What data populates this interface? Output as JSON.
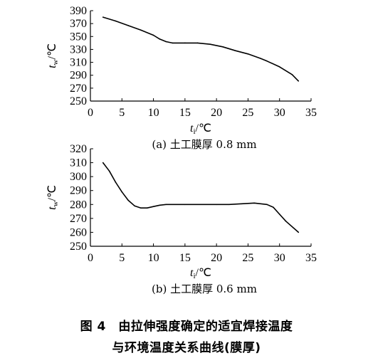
{
  "chart_data": [
    {
      "type": "line",
      "subcaption": "(a) 土工膜厚 0.8 mm",
      "xlabel_var": "t",
      "xlabel_sub": "i",
      "xlabel_unit": "/℃",
      "ylabel_var": "t",
      "ylabel_sub": "w",
      "ylabel_unit": "/℃",
      "xlim": [
        0,
        35
      ],
      "ylim": [
        250,
        390
      ],
      "xticks": [
        0,
        5,
        10,
        15,
        20,
        25,
        30,
        35
      ],
      "yticks": [
        250,
        270,
        290,
        310,
        330,
        350,
        370,
        390
      ],
      "x": [
        2,
        4,
        6,
        8,
        10,
        11,
        12,
        13,
        15,
        17,
        19,
        21,
        23,
        25,
        27,
        28,
        30,
        32,
        33
      ],
      "y": [
        380,
        374,
        367,
        360,
        352,
        346,
        342,
        340,
        340,
        340,
        338,
        334,
        328,
        323,
        316,
        312,
        303,
        291,
        281
      ]
    },
    {
      "type": "line",
      "subcaption": "(b) 土工膜厚 0.6 mm",
      "xlabel_var": "t",
      "xlabel_sub": "i",
      "xlabel_unit": "/℃",
      "ylabel_var": "t",
      "ylabel_sub": "w",
      "ylabel_unit": "/℃",
      "xlim": [
        0,
        35
      ],
      "ylim": [
        250,
        320
      ],
      "xticks": [
        0,
        5,
        10,
        15,
        20,
        25,
        30,
        35
      ],
      "yticks": [
        250,
        260,
        270,
        280,
        290,
        300,
        310,
        320
      ],
      "x": [
        2,
        3,
        4,
        5,
        6,
        7,
        8,
        9,
        10,
        11,
        12,
        15,
        20,
        22,
        24,
        26,
        28,
        29,
        30,
        31,
        33
      ],
      "y": [
        310,
        304,
        296,
        289,
        283,
        279,
        277.5,
        277.5,
        278.5,
        279.5,
        280,
        280,
        280,
        280,
        280.5,
        281,
        280,
        278,
        273,
        268,
        260
      ]
    }
  ],
  "caption": {
    "line1": "图 4　由拉伸强度确定的适宜焊接温度",
    "line2": "与环境温度关系曲线(膜厚)"
  }
}
